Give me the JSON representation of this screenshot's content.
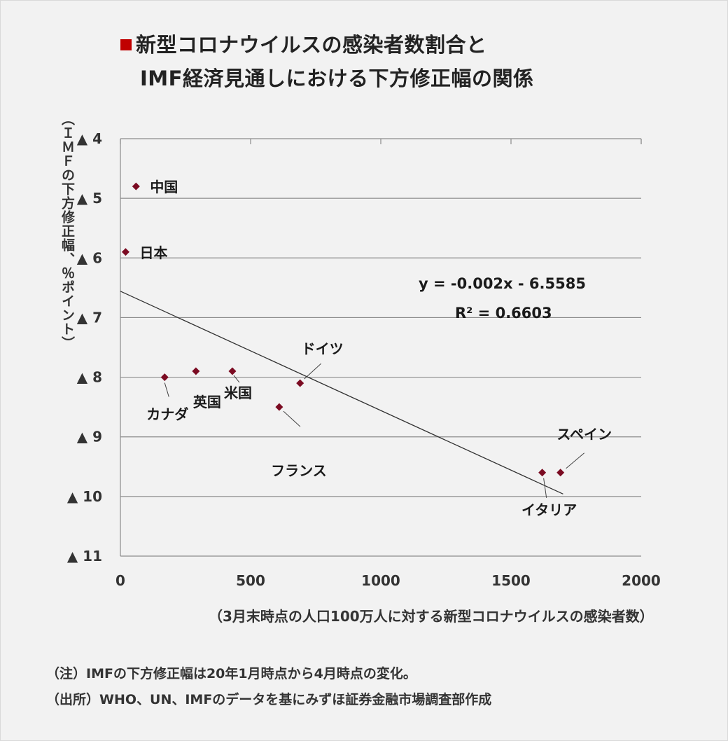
{
  "title": {
    "line1": "新型コロナウイルスの感染者数割合と",
    "line2": "IMF経済見通しにおける下方修正幅の関係"
  },
  "colors": {
    "accent": "#c00000",
    "marker": "#7b0b22",
    "grid": "#8c8c8c",
    "trend": "#333333"
  },
  "chart_data": {
    "type": "scatter",
    "title": "新型コロナウイルスの感染者数割合と IMF経済見通しにおける下方修正幅の関係",
    "xlabel": "（3月末時点の人口100万人に対する新型コロナウイルスの感染者数）",
    "ylabel": "（ＩＭＦの下方修正幅、％ポイント）",
    "xlim": [
      0,
      2000
    ],
    "ylim": [
      -11,
      -4
    ],
    "x_ticks": [
      0,
      500,
      1000,
      1500,
      2000
    ],
    "x_tick_labels": [
      "0",
      "500",
      "1000",
      "1500",
      "2000"
    ],
    "y_ticks": [
      -4,
      -5,
      -6,
      -7,
      -8,
      -9,
      -10,
      -11
    ],
    "y_tick_labels": [
      "▲ 4",
      "▲ 5",
      "▲ 6",
      "▲ 7",
      "▲ 8",
      "▲ 9",
      "▲ 10",
      "▲ 11"
    ],
    "grid": "horizontal",
    "points": [
      {
        "label": "中国",
        "x": 60,
        "y": -4.8
      },
      {
        "label": "日本",
        "x": 20,
        "y": -5.9
      },
      {
        "label": "カナダ",
        "x": 170,
        "y": -8.0
      },
      {
        "label": "英国",
        "x": 290,
        "y": -7.9
      },
      {
        "label": "米国",
        "x": 430,
        "y": -7.9
      },
      {
        "label": "フランス",
        "x": 610,
        "y": -8.5
      },
      {
        "label": "ドイツ",
        "x": 690,
        "y": -8.1
      },
      {
        "label": "イタリア",
        "x": 1620,
        "y": -9.6
      },
      {
        "label": "スペイン",
        "x": 1690,
        "y": -9.6
      }
    ],
    "trendline": {
      "slope": -0.002,
      "intercept": -6.5585,
      "x_range": [
        0,
        1700
      ],
      "equation": "y = -0.002x - 6.5585",
      "r2": "R² = 0.6603"
    }
  },
  "notes": {
    "note1": "（注）IMFの下方修正幅は20年1月時点から4月時点の変化。",
    "note2": "（出所）WHO、UN、IMFのデータを基にみずほ証券金融市場調査部作成"
  }
}
